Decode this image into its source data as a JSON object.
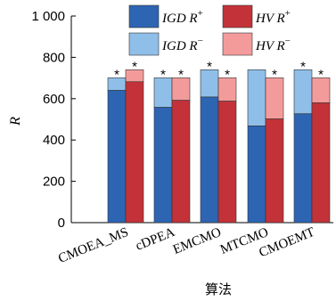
{
  "chart_data": {
    "type": "bar",
    "subtype": "stacked-grouped",
    "categories": [
      "CMOEA_MS",
      "cDPEA",
      "EMCMO",
      "MTCMO",
      "CMOEMT"
    ],
    "series": [
      {
        "group": "IGD",
        "name_plus": "IGD R",
        "name_minus": "IGD R",
        "plus": [
          640,
          558,
          608,
          468,
          527
        ],
        "total": [
          701,
          701,
          740,
          740,
          740
        ],
        "color_plus": "#2d65b3",
        "color_minus": "#8fbfe8",
        "significant": [
          true,
          true,
          true,
          false,
          true
        ]
      },
      {
        "group": "HV",
        "name_plus": "HV R",
        "name_minus": "HV R",
        "plus": [
          682,
          592,
          588,
          502,
          580
        ],
        "total": [
          740,
          701,
          701,
          701,
          701
        ],
        "color_plus": "#c23238",
        "color_minus": "#f39b9b",
        "significant": [
          true,
          true,
          true,
          true,
          true
        ]
      }
    ],
    "sup_plus": "+",
    "sup_minus": "−",
    "star": "*",
    "ylabel": "R",
    "xlabel": "算法",
    "ylim": [
      0,
      1000
    ],
    "yticks": [
      0,
      200,
      400,
      600,
      800
    ],
    "ytick_labels": [
      "0",
      "200",
      "400",
      "600",
      "800"
    ],
    "ytop_label": "1 000",
    "grid": false,
    "legend_position": "top-right"
  }
}
